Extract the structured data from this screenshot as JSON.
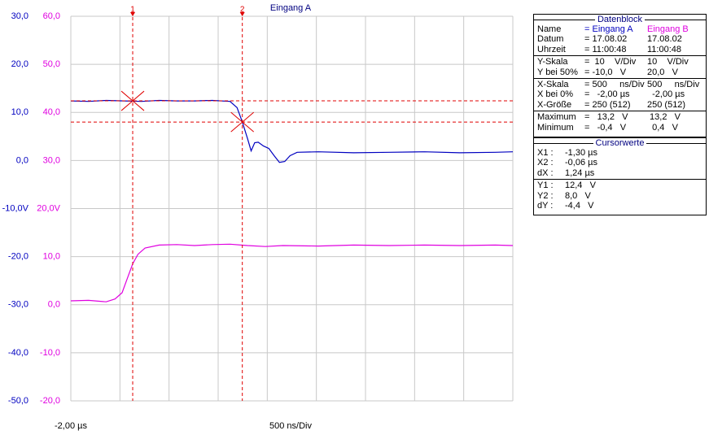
{
  "chart_data": {
    "type": "line",
    "title": "Eingang A",
    "xlim": [
      -2.0,
      3.0
    ],
    "ylim": [
      -50,
      30
    ],
    "yticks": [
      {
        "value": 30,
        "label": "30,0"
      },
      {
        "value": 20,
        "label": "20,0"
      },
      {
        "value": 10,
        "label": "10,0"
      },
      {
        "value": 0,
        "label": "0,0"
      },
      {
        "value": -10,
        "label": "-10,0V"
      },
      {
        "value": -20,
        "label": "-20,0"
      },
      {
        "value": -30,
        "label": "-30,0"
      },
      {
        "value": -40,
        "label": "-40,0"
      },
      {
        "value": -50,
        "label": "-50,0"
      }
    ],
    "y2lim": [
      -20,
      60
    ],
    "y2ticks": [
      {
        "value": 60,
        "label": "60,0"
      },
      {
        "value": 50,
        "label": "50,0"
      },
      {
        "value": 40,
        "label": "40,0"
      },
      {
        "value": 30,
        "label": "30,0"
      },
      {
        "value": 20,
        "label": "20,0V"
      },
      {
        "value": 10,
        "label": "10,0"
      },
      {
        "value": 0,
        "label": "0,0"
      },
      {
        "value": -10,
        "label": "-10,0"
      },
      {
        "value": -20,
        "label": "-20,0"
      }
    ],
    "grid": true,
    "x_start_label": "-2,00 µs",
    "x_scale_label": "500 ns/Div",
    "series": [
      {
        "name": "Eingang A",
        "color": "#0000c0",
        "x": [
          -2.0,
          -1.8,
          -1.6,
          -1.4,
          -1.2,
          -1.0,
          -0.8,
          -0.6,
          -0.4,
          -0.2,
          -0.12,
          -0.06,
          0.0,
          0.04,
          0.08,
          0.12,
          0.18,
          0.24,
          0.3,
          0.36,
          0.42,
          0.48,
          0.56,
          0.8,
          1.2,
          1.6,
          2.0,
          2.4,
          2.8,
          3.0
        ],
        "values": [
          12.4,
          12.3,
          12.5,
          12.4,
          12.3,
          12.5,
          12.4,
          12.4,
          12.5,
          12.3,
          11.0,
          8.0,
          4.5,
          2.0,
          3.7,
          3.8,
          3.0,
          2.5,
          1.0,
          -0.4,
          -0.2,
          1.0,
          1.7,
          1.8,
          1.6,
          1.7,
          1.8,
          1.6,
          1.7,
          1.8
        ]
      },
      {
        "name": "Eingang B",
        "color": "#e000e0",
        "axis": "y2",
        "x": [
          -2.0,
          -1.8,
          -1.6,
          -1.5,
          -1.42,
          -1.36,
          -1.3,
          -1.24,
          -1.16,
          -1.0,
          -0.8,
          -0.6,
          -0.4,
          -0.2,
          0.0,
          0.2,
          0.4,
          0.8,
          1.2,
          1.6,
          2.0,
          2.4,
          2.8,
          3.0
        ],
        "values": [
          0.8,
          0.9,
          0.6,
          1.2,
          2.5,
          5.5,
          8.5,
          10.5,
          11.8,
          12.4,
          12.5,
          12.3,
          12.5,
          12.6,
          12.3,
          12.1,
          12.3,
          12.2,
          12.4,
          12.3,
          12.4,
          12.3,
          12.4,
          12.3
        ]
      }
    ],
    "cursors": {
      "labels": [
        "1",
        "2"
      ],
      "x": [
        -1.3,
        -0.06
      ],
      "y": [
        12.4,
        8.0
      ],
      "color": "#e00000"
    }
  },
  "datenblock": {
    "title": "Datenblock",
    "rows": [
      [
        "Name",
        "= Eingang A",
        "Eingang B"
      ],
      [
        "Datum",
        "= 17.08.02",
        "17.08.02"
      ],
      [
        "Uhrzeit",
        "= 11:00:48",
        "11:00:48"
      ],
      [
        "Y-Skala",
        "=  10    V/Div",
        "10    V/Div"
      ],
      [
        "Y bei 50%",
        "= -10,0   V",
        "20,0   V"
      ],
      [
        "X-Skala",
        "= 500     ns/Div",
        "500     ns/Div"
      ],
      [
        "X bei 0%",
        "=   -2,00 µs",
        "  -2,00 µs"
      ],
      [
        "X-Größe",
        "= 250 (512)",
        "250 (512)"
      ],
      [
        "Maximum",
        "=   13,2   V",
        " 13,2   V"
      ],
      [
        "Minimum",
        "=   -0,4   V",
        "  0,4   V"
      ]
    ]
  },
  "cursorwerte": {
    "title": "Cursorwerte",
    "rows": [
      [
        "X1 :",
        "-1,30 µs"
      ],
      [
        "X2 :",
        "-0,06 µs"
      ],
      [
        "dX :",
        "1,24 µs"
      ],
      [
        "Y1 :",
        "12,4   V"
      ],
      [
        "Y2 :",
        "8,0   V"
      ],
      [
        "dY :",
        "-4,4   V"
      ]
    ]
  }
}
